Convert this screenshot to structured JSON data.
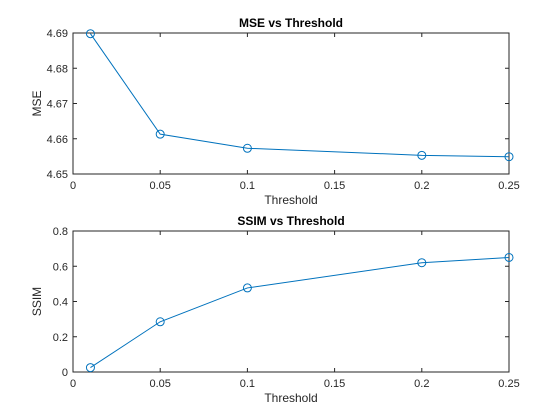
{
  "chart_data": [
    {
      "type": "line",
      "title": "MSE vs Threshold",
      "xlabel": "Threshold",
      "ylabel": "MSE",
      "xlim": [
        0,
        0.25
      ],
      "ylim": [
        4.65,
        4.69
      ],
      "x_ticks": [
        "0",
        "0.05",
        "0.1",
        "0.15",
        "0.2",
        "0.25"
      ],
      "y_ticks": [
        "4.65",
        "4.66",
        "4.67",
        "4.68",
        "4.69"
      ],
      "grid": false,
      "marker": "circle",
      "color": "#0072BD",
      "x": [
        0.01,
        0.05,
        0.1,
        0.2,
        0.25
      ],
      "y": [
        4.6898,
        4.6613,
        4.6573,
        4.6553,
        4.6549
      ]
    },
    {
      "type": "line",
      "title": "SSIM vs Threshold",
      "xlabel": "Threshold",
      "ylabel": "SSIM",
      "xlim": [
        0,
        0.25
      ],
      "ylim": [
        0,
        0.8
      ],
      "x_ticks": [
        "0",
        "0.05",
        "0.1",
        "0.15",
        "0.2",
        "0.25"
      ],
      "y_ticks": [
        "0",
        "0.2",
        "0.4",
        "0.6",
        "0.8"
      ],
      "grid": false,
      "marker": "circle",
      "color": "#0072BD",
      "x": [
        0.01,
        0.05,
        0.1,
        0.2,
        0.25
      ],
      "y": [
        0.025,
        0.285,
        0.477,
        0.62,
        0.65
      ]
    }
  ]
}
